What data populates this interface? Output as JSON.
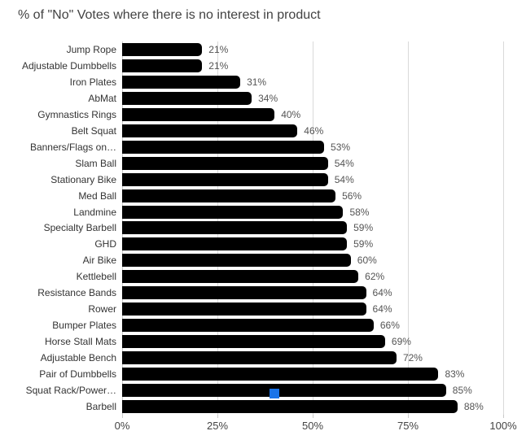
{
  "chart_data": {
    "type": "bar",
    "orientation": "horizontal",
    "title": "% of \"No\" Votes where there is no interest in product",
    "categories": [
      "Jump Rope",
      "Adjustable Dumbbells",
      "Iron Plates",
      "AbMat",
      "Gymnastics Rings",
      "Belt Squat",
      "Banners/Flags on…",
      "Slam Ball",
      "Stationary Bike",
      "Med Ball",
      "Landmine",
      "Specialty Barbell",
      "GHD",
      "Air Bike",
      "Kettlebell",
      "Resistance Bands",
      "Rower",
      "Bumper Plates",
      "Horse Stall Mats",
      "Adjustable Bench",
      "Pair of Dumbbells",
      "Squat Rack/Power…",
      "Barbell"
    ],
    "values": [
      21,
      21,
      31,
      34,
      40,
      46,
      53,
      54,
      54,
      56,
      58,
      59,
      59,
      60,
      62,
      64,
      64,
      66,
      69,
      72,
      83,
      85,
      88
    ],
    "value_suffix": "%",
    "xlabel": "",
    "ylabel": "",
    "xlim": [
      0,
      100
    ],
    "x_axis_ticks": [
      "0%",
      "25%",
      "50%",
      "75%",
      "100%"
    ],
    "gridlines": true,
    "legend": "none",
    "colors": {
      "background": "#ffffff",
      "bar": "#000000",
      "title": "#424242",
      "category_label": "#333333",
      "annotation": "#545454",
      "axis_label": "#444444",
      "gridline": "#d9d9d9",
      "axis_line": "#c9c9c9"
    }
  },
  "selection_handle": {
    "color": "#1a73e8",
    "on_category": "Squat Rack/Power…"
  }
}
